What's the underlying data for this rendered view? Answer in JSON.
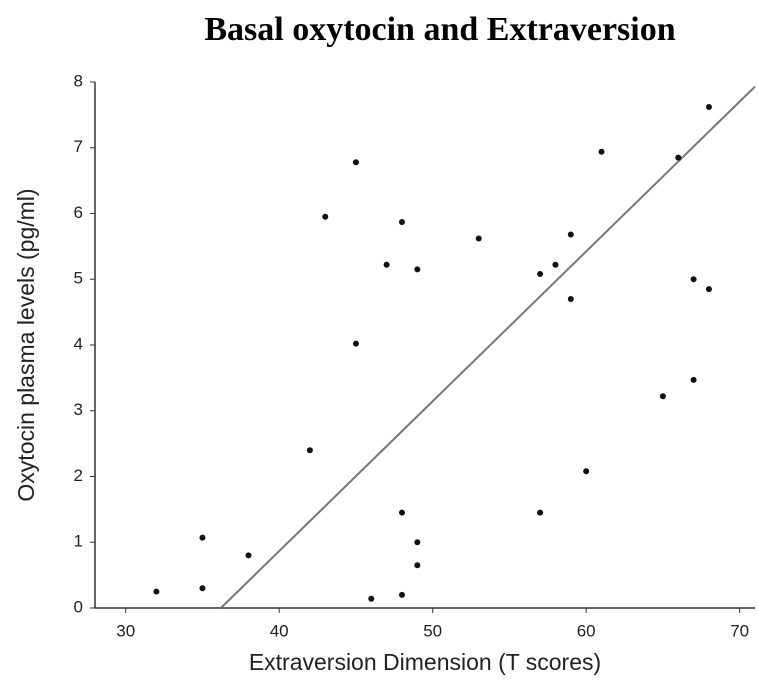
{
  "chart_data": {
    "type": "scatter",
    "title": "Basal oxytocin and Extraversion",
    "xlabel": "Extraversion Dimension (T scores)",
    "ylabel": "Oxytocin plasma levels (pg/ml)",
    "xlim": [
      28,
      71
    ],
    "ylim": [
      0,
      8
    ],
    "xticks": [
      30,
      40,
      50,
      60,
      70
    ],
    "yticks": [
      0,
      1,
      2,
      3,
      4,
      5,
      6,
      7,
      8
    ],
    "series": [
      {
        "color": "#111111",
        "x": [
          32,
          35,
          35,
          38,
          42,
          43,
          45,
          45,
          46,
          47,
          48,
          48,
          48,
          49,
          49,
          49,
          53,
          57,
          57,
          58,
          59,
          59,
          60,
          61,
          65,
          66,
          67,
          67,
          68,
          68
        ],
        "values": [
          0.25,
          1.07,
          0.3,
          0.8,
          2.4,
          5.95,
          6.78,
          4.02,
          0.14,
          5.22,
          5.87,
          1.45,
          0.2,
          5.15,
          1.0,
          0.65,
          5.62,
          5.08,
          1.45,
          5.22,
          5.68,
          4.7,
          2.08,
          6.94,
          3.22,
          6.85,
          5.0,
          3.47,
          7.62,
          4.85
        ]
      }
    ],
    "trendline": {
      "color": "#777777",
      "x": [
        36.2,
        71
      ],
      "values": [
        0,
        7.93
      ]
    }
  }
}
